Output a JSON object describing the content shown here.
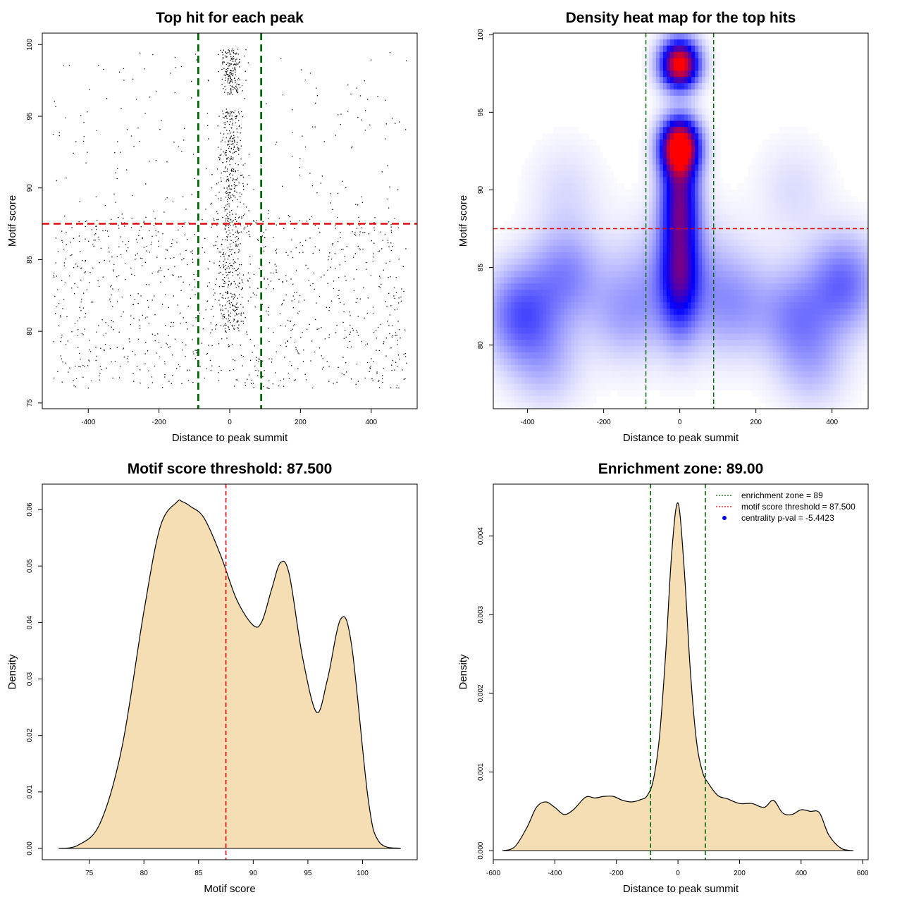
{
  "chart_data": [
    {
      "type": "scatter",
      "title": "Top hit for each peak",
      "xlabel": "Distance to peak summit",
      "ylabel": "Motif score",
      "xlim": [
        -530,
        530
      ],
      "ylim": [
        74.6,
        100.8
      ],
      "x_ticks": [
        -400,
        -200,
        0,
        200,
        400
      ],
      "y_ticks": [
        75,
        80,
        85,
        90,
        95,
        100
      ],
      "reference_lines": {
        "vertical": [
          -89,
          89
        ],
        "vertical_color": "#006400",
        "horizontal": [
          87.5
        ],
        "horizontal_color": "#dd0000"
      },
      "point_color": "#000000",
      "approx_points": 1900,
      "clusters": [
        {
          "x_center": 5,
          "x_spread": 28,
          "y_min": 96.5,
          "y_max": 99.7,
          "count": 180
        },
        {
          "x_center": 5,
          "x_spread": 30,
          "y_min": 89.5,
          "y_max": 95.5,
          "count": 230
        },
        {
          "x_center": 0,
          "x_spread": 40,
          "y_min": 80,
          "y_max": 89.5,
          "count": 300
        },
        {
          "x_center": 0,
          "x_spread": 500,
          "y_min": 76,
          "y_max": 88,
          "count": 1000
        },
        {
          "x_center": 0,
          "x_spread": 500,
          "y_min": 88,
          "y_max": 99.6,
          "count": 190
        }
      ]
    },
    {
      "type": "heatmap",
      "title": "Density heat map for the top hits",
      "xlabel": "Distance to peak summit",
      "ylabel": "Motif score",
      "xlim": [
        -490,
        495
      ],
      "ylim": [
        75.9,
        100.1
      ],
      "x_ticks": [
        -400,
        -200,
        0,
        200,
        400
      ],
      "y_ticks": [
        80,
        85,
        90,
        95,
        100
      ],
      "colors": [
        "#ffffff",
        "#0000ff",
        "#ff0000"
      ],
      "reference_lines": {
        "vertical": [
          -89,
          89
        ],
        "vertical_color": "#006400",
        "horizontal": [
          87.5
        ],
        "horizontal_color": "#dd0000"
      },
      "hotspots": [
        {
          "x": 0,
          "y": 98.1,
          "intensity": 1.0
        },
        {
          "x": 0,
          "y": 92.8,
          "intensity": 1.0
        },
        {
          "x": 0,
          "y": 86,
          "intensity": 0.55
        },
        {
          "x": -420,
          "y": 82,
          "intensity": 0.25
        },
        {
          "x": -300,
          "y": 84,
          "intensity": 0.2
        },
        {
          "x": 420,
          "y": 84,
          "intensity": 0.25
        },
        {
          "x": 300,
          "y": 82,
          "intensity": 0.18
        }
      ]
    },
    {
      "type": "area",
      "title": "Motif score threshold: 87.500",
      "xlabel": "Motif score",
      "ylabel": "Density",
      "xlim": [
        70.7,
        105
      ],
      "ylim": [
        -0.002,
        0.0645
      ],
      "x_ticks": [
        75,
        80,
        85,
        90,
        95,
        100
      ],
      "y_ticks": [
        0.0,
        0.01,
        0.02,
        0.03,
        0.04,
        0.05,
        0.06
      ],
      "y_tick_labels": [
        "0.00",
        "0.01",
        "0.02",
        "0.03",
        "0.04",
        "0.05",
        "0.06"
      ],
      "fill_color": "#f5deb3",
      "line_color": "#000000",
      "reference_lines": {
        "vertical": [
          87.5
        ],
        "vertical_color": "#dd0000"
      },
      "x": [
        72.2,
        74,
        76,
        78,
        80,
        81.5,
        83,
        83.5,
        84.3,
        85.5,
        87,
        88.5,
        90,
        90.8,
        91.7,
        92.5,
        93.3,
        94.5,
        95.8,
        96.8,
        98,
        99,
        100.5,
        101.5,
        103.5
      ],
      "y": [
        0.0,
        0.0006,
        0.0045,
        0.018,
        0.042,
        0.057,
        0.0613,
        0.0614,
        0.0605,
        0.0585,
        0.052,
        0.044,
        0.0395,
        0.0402,
        0.046,
        0.0506,
        0.0485,
        0.034,
        0.0241,
        0.03,
        0.0406,
        0.036,
        0.009,
        0.0012,
        0.0
      ]
    },
    {
      "type": "area",
      "title": "Enrichment zone: 89.00",
      "xlabel": "Distance to peak summit",
      "ylabel": "Density",
      "xlim": [
        -600,
        618
      ],
      "ylim": [
        -0.000115,
        0.00466
      ],
      "x_ticks": [
        -600,
        -400,
        -200,
        0,
        200,
        400,
        600
      ],
      "y_ticks": [
        0.0,
        0.001,
        0.002,
        0.003,
        0.004
      ],
      "y_tick_labels": [
        "0.000",
        "0.001",
        "0.002",
        "0.003",
        "0.004"
      ],
      "fill_color": "#f5deb3",
      "line_color": "#000000",
      "reference_lines": {
        "vertical": [
          -89,
          89
        ],
        "vertical_color": "#006400"
      },
      "x": [
        -570,
        -530,
        -490,
        -460,
        -430,
        -400,
        -370,
        -340,
        -300,
        -270,
        -240,
        -210,
        -180,
        -150,
        -120,
        -100,
        -80,
        -60,
        -40,
        -20,
        0,
        20,
        40,
        60,
        80,
        100,
        130,
        160,
        200,
        240,
        280,
        310,
        340,
        370,
        400,
        430,
        460,
        490,
        530,
        570
      ],
      "y": [
        0.0,
        5e-05,
        0.0003,
        0.00055,
        0.00062,
        0.00055,
        0.00046,
        0.00052,
        0.00068,
        0.00067,
        0.00069,
        0.00069,
        0.00064,
        0.00062,
        0.00065,
        0.0007,
        0.0009,
        0.00145,
        0.0025,
        0.0038,
        0.00442,
        0.0036,
        0.0023,
        0.0014,
        0.001,
        0.00085,
        0.0007,
        0.00066,
        0.0006,
        0.0006,
        0.00055,
        0.00064,
        0.00048,
        0.00046,
        0.00052,
        0.0005,
        0.00048,
        0.0002,
        3e-05,
        0.0
      ],
      "legend": {
        "position": "top-right",
        "entries": [
          {
            "label": "enrichment zone = 89",
            "color": "#006400",
            "style": "dotted-line"
          },
          {
            "label": "motif score threshold = 87.500",
            "color": "#dd0000",
            "style": "dotted-line"
          },
          {
            "label": "centrality p-val = -5.4423",
            "color": "#0000ff",
            "style": "point"
          }
        ]
      }
    }
  ]
}
